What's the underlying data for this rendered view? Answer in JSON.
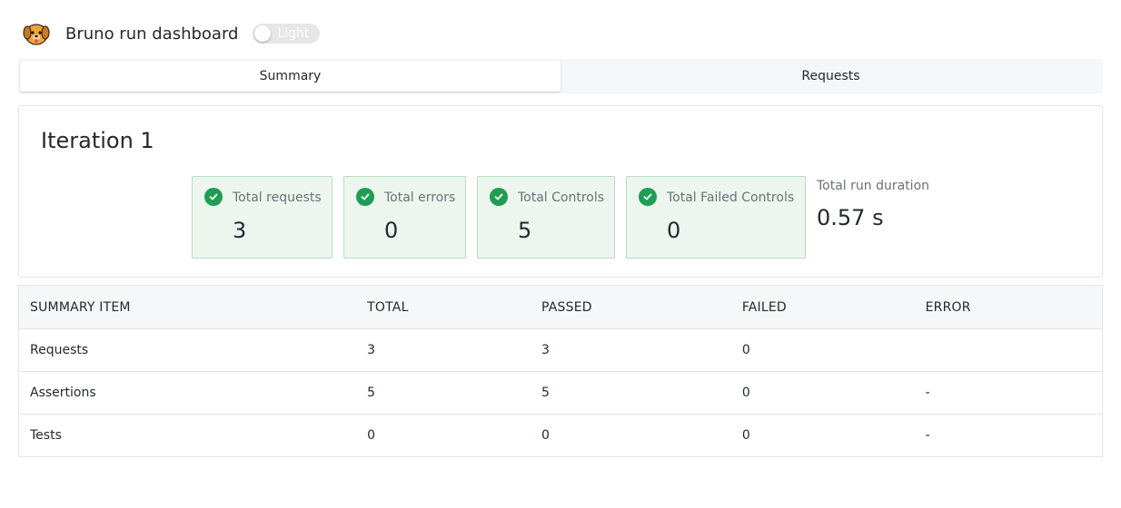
{
  "header": {
    "title": "Bruno run dashboard",
    "theme_toggle_label": "Light"
  },
  "tabs": [
    {
      "label": "Summary",
      "active": true
    },
    {
      "label": "Requests",
      "active": false
    }
  ],
  "summary": {
    "iteration_title": "Iteration 1",
    "stats": [
      {
        "label": "Total requests",
        "value": "3"
      },
      {
        "label": "Total errors",
        "value": "0"
      },
      {
        "label": "Total Controls",
        "value": "5"
      },
      {
        "label": "Total Failed Controls",
        "value": "0"
      }
    ],
    "duration_label": "Total run duration",
    "duration_value": "0.57 s"
  },
  "table": {
    "headers": [
      "SUMMARY ITEM",
      "TOTAL",
      "PASSED",
      "FAILED",
      "ERROR"
    ],
    "rows": [
      [
        "Requests",
        "3",
        "3",
        "0",
        ""
      ],
      [
        "Assertions",
        "5",
        "5",
        "0",
        "-"
      ],
      [
        "Tests",
        "0",
        "0",
        "0",
        "-"
      ]
    ]
  },
  "colors": {
    "success": "#1f9d55",
    "stat_bg": "#ecf6ee",
    "stat_border": "#b8dcc2"
  }
}
